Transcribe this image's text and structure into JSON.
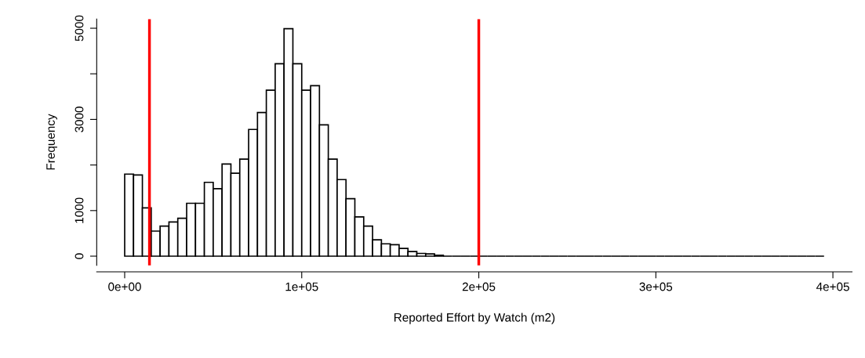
{
  "chart_data": {
    "type": "histogram",
    "xlabel": "Reported Effort by Watch (m2)",
    "ylabel": "Frequency",
    "bins": [
      0,
      5000,
      10000,
      15000,
      20000,
      25000,
      30000,
      35000,
      40000,
      45000,
      50000,
      55000,
      60000,
      65000,
      70000,
      75000,
      80000,
      85000,
      90000,
      95000,
      100000,
      105000,
      110000,
      115000,
      120000,
      125000,
      130000,
      135000,
      140000,
      145000,
      150000,
      155000,
      160000,
      165000,
      170000,
      175000,
      180000,
      185000,
      190000,
      195000,
      200000,
      205000,
      210000,
      215000,
      220000,
      225000,
      230000,
      235000,
      240000,
      245000,
      250000,
      255000,
      260000,
      265000,
      270000,
      275000,
      280000,
      285000,
      290000,
      295000,
      300000,
      305000,
      310000,
      315000,
      320000,
      325000,
      330000,
      335000,
      340000,
      345000,
      350000,
      355000,
      360000,
      365000,
      370000,
      375000,
      380000,
      385000,
      390000,
      395000
    ],
    "values": [
      1800,
      1780,
      1060,
      550,
      660,
      750,
      830,
      1160,
      1160,
      1620,
      1480,
      2020,
      1820,
      2130,
      2780,
      3150,
      3640,
      4220,
      4990,
      4220,
      3640,
      3740,
      2880,
      2130,
      1680,
      1260,
      860,
      660,
      360,
      270,
      250,
      170,
      100,
      60,
      50,
      20,
      0,
      0,
      0,
      0,
      0,
      0,
      0,
      0,
      0,
      0,
      0,
      0,
      0,
      0,
      0,
      0,
      0,
      0,
      0,
      0,
      0,
      0,
      0,
      0,
      0,
      0,
      0,
      0,
      0,
      0,
      0,
      0,
      0,
      0,
      0,
      0,
      0,
      0,
      0,
      0,
      0,
      0,
      0
    ],
    "xlim": [
      -15800,
      410800
    ],
    "ylim": [
      -200,
      5200
    ],
    "xticks": [
      {
        "value": 0,
        "label": "0e+00"
      },
      {
        "value": 100000,
        "label": "1e+05"
      },
      {
        "value": 200000,
        "label": "2e+05"
      },
      {
        "value": 300000,
        "label": "3e+05"
      },
      {
        "value": 400000,
        "label": "4e+05"
      }
    ],
    "yticks": [
      0,
      1000,
      {
        "value": 2000,
        "label": null
      },
      3000,
      {
        "value": 4000,
        "label": null
      },
      5000
    ],
    "ref_lines": [
      {
        "axis": "x",
        "value": 14000,
        "color": "#ff0000"
      },
      {
        "axis": "x",
        "value": 200000,
        "color": "#ff0000"
      }
    ]
  }
}
